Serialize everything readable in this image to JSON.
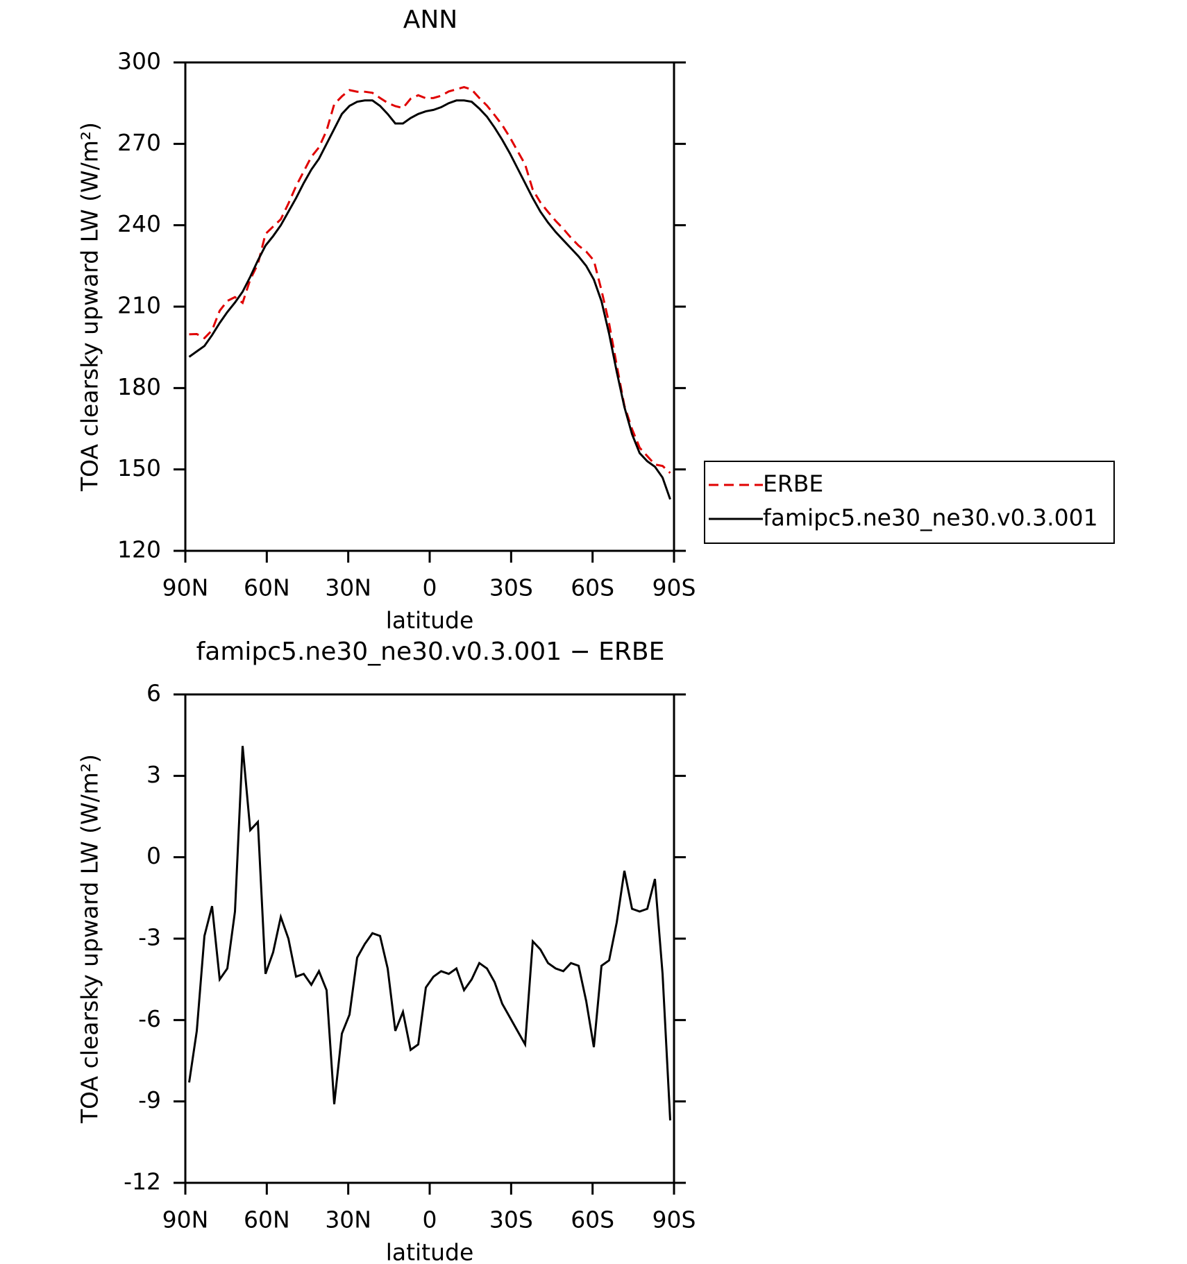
{
  "chart_data": [
    {
      "type": "line",
      "title": "ANN",
      "xlabel": "latitude",
      "ylabel": "TOA clearsky upward LW (W/m²)",
      "x": [
        88.59,
        85.78,
        82.97,
        80.16,
        77.34,
        74.53,
        71.72,
        68.91,
        66.09,
        63.28,
        60.47,
        57.66,
        54.84,
        52.03,
        49.22,
        46.41,
        43.59,
        40.78,
        37.97,
        35.16,
        32.34,
        29.53,
        26.72,
        23.91,
        21.09,
        18.28,
        15.47,
        12.66,
        9.84,
        7.03,
        4.22,
        1.41,
        -1.41,
        -4.22,
        -7.03,
        -9.84,
        -12.66,
        -15.47,
        -18.28,
        -21.09,
        -23.91,
        -26.72,
        -29.53,
        -32.34,
        -35.16,
        -37.97,
        -40.78,
        -43.59,
        -46.41,
        -49.22,
        -52.03,
        -54.84,
        -57.66,
        -60.47,
        -63.28,
        -66.09,
        -68.91,
        -71.72,
        -74.53,
        -77.34,
        -80.16,
        -82.97,
        -85.78,
        -88.59
      ],
      "series": [
        {
          "name": "ERBE",
          "color": "#e00000",
          "dash": true,
          "values": [
            199.8,
            199.9,
            198.4,
            201.3,
            208.5,
            212.1,
            213.5,
            211.4,
            220,
            225.7,
            236.8,
            239.5,
            242.2,
            248,
            254.4,
            259.8,
            265.2,
            268.7,
            274.9,
            284.6,
            287.5,
            289.8,
            289.2,
            289.2,
            288.8,
            286.9,
            285.1,
            283.9,
            283.2,
            286.6,
            287.9,
            286.8,
            286.9,
            287.7,
            289.3,
            290.1,
            290.9,
            290,
            286.9,
            284.1,
            280.6,
            276.9,
            272.4,
            267.4,
            262.4,
            253.1,
            248.4,
            244.9,
            241.6,
            238.7,
            235.4,
            232.5,
            230.3,
            227,
            216,
            203.8,
            188.4,
            173.5,
            164.9,
            158,
            154.9,
            151.8,
            151.3,
            148.7
          ]
        },
        {
          "name": "famipc5.ne30_ne30.v0.3.001",
          "color": "#000000",
          "dash": false,
          "values": [
            191.5,
            193.5,
            195.5,
            199.5,
            204,
            208,
            211.5,
            215.5,
            221,
            227,
            232.5,
            236,
            240,
            245,
            250,
            255.5,
            260.5,
            264.5,
            270,
            275.5,
            281,
            284,
            285.5,
            286,
            286,
            284,
            281,
            277.5,
            277.5,
            279.5,
            281,
            282,
            282.5,
            283.5,
            285,
            286,
            286,
            285.5,
            283,
            280,
            276,
            271.5,
            266.5,
            261,
            255.5,
            250,
            245,
            241,
            237.5,
            234.5,
            231.5,
            228.5,
            225,
            220,
            212,
            200,
            186,
            173,
            163,
            156,
            153,
            151,
            147,
            139
          ]
        }
      ],
      "xlim": [
        90,
        -90
      ],
      "xticks": [
        {
          "value": 90,
          "label": "90N"
        },
        {
          "value": 60,
          "label": "60N"
        },
        {
          "value": 30,
          "label": "30N"
        },
        0,
        {
          "value": -30,
          "label": "30S"
        },
        {
          "value": -60,
          "label": "60S"
        },
        {
          "value": -90,
          "label": "90S"
        }
      ],
      "ylim": [
        120,
        300
      ],
      "yticks": [
        120,
        150,
        180,
        210,
        240,
        270,
        300
      ],
      "legend": "right"
    },
    {
      "type": "line",
      "title": "famipc5.ne30_ne30.v0.3.001 − ERBE",
      "xlabel": "latitude",
      "ylabel": "TOA clearsky upward LW (W/m²)",
      "x": [
        88.59,
        85.78,
        82.97,
        80.16,
        77.34,
        74.53,
        71.72,
        68.91,
        66.09,
        63.28,
        60.47,
        57.66,
        54.84,
        52.03,
        49.22,
        46.41,
        43.59,
        40.78,
        37.97,
        35.16,
        32.34,
        29.53,
        26.72,
        23.91,
        21.09,
        18.28,
        15.47,
        12.66,
        9.84,
        7.03,
        4.22,
        1.41,
        -1.41,
        -4.22,
        -7.03,
        -9.84,
        -12.66,
        -15.47,
        -18.28,
        -21.09,
        -23.91,
        -26.72,
        -29.53,
        -32.34,
        -35.16,
        -37.97,
        -40.78,
        -43.59,
        -46.41,
        -49.22,
        -52.03,
        -54.84,
        -57.66,
        -60.47,
        -63.28,
        -66.09,
        -68.91,
        -71.72,
        -74.53,
        -77.34,
        -80.16,
        -82.97,
        -85.78,
        -88.59
      ],
      "series": [
        {
          "color": "#000000",
          "dash": false,
          "values": [
            -8.3,
            -6.4,
            -2.9,
            -1.8,
            -4.5,
            -4.1,
            -2.0,
            4.1,
            1.0,
            1.3,
            -4.3,
            -3.5,
            -2.2,
            -3.0,
            -4.4,
            -4.3,
            -4.7,
            -4.2,
            -4.9,
            -9.1,
            -6.5,
            -5.8,
            -3.7,
            -3.2,
            -2.8,
            -2.9,
            -4.1,
            -6.4,
            -5.7,
            -7.1,
            -6.9,
            -4.8,
            -4.4,
            -4.2,
            -4.3,
            -4.1,
            -4.9,
            -4.5,
            -3.9,
            -4.1,
            -4.6,
            -5.4,
            -5.9,
            -6.4,
            -6.9,
            -3.1,
            -3.4,
            -3.9,
            -4.1,
            -4.2,
            -3.9,
            -4.0,
            -5.3,
            -7.0,
            -4.0,
            -3.8,
            -2.4,
            -0.5,
            -1.9,
            -2.0,
            -1.9,
            -0.8,
            -4.3,
            -9.7
          ]
        }
      ],
      "xlim": [
        90,
        -90
      ],
      "xticks": [
        {
          "value": 90,
          "label": "90N"
        },
        {
          "value": 60,
          "label": "60N"
        },
        {
          "value": 30,
          "label": "30N"
        },
        0,
        {
          "value": -30,
          "label": "30S"
        },
        {
          "value": -60,
          "label": "60S"
        },
        {
          "value": -90,
          "label": "90S"
        }
      ],
      "ylim": [
        -12,
        6
      ],
      "yticks": [
        -12,
        -9,
        -6,
        -3,
        0,
        3,
        6
      ]
    }
  ]
}
